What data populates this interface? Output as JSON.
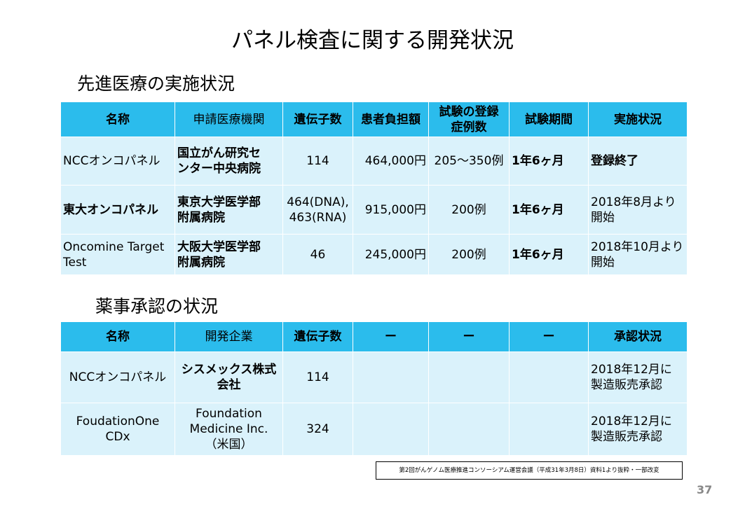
{
  "title": "パネル検査に関する開発状況",
  "section1": {
    "heading": "先進医療の実施状況",
    "headers": [
      "名称",
      "申請医療機関",
      "遺伝子数",
      "患者負担額",
      "試験の登録\n症例数",
      "試験期間",
      "実施状況"
    ],
    "rows": [
      [
        "NCCオンコパネル",
        "国立がん研究セ\nンター中央病院",
        "114",
        "464,000円",
        "205～350例",
        "1年6ヶ月",
        "登録終了"
      ],
      [
        "東大オンコパネル",
        "東京大学医学部\n附属病院",
        "464(DNA),\n463(RNA)",
        "915,000円",
        "200例",
        "1年6ヶ月",
        "2018年8月より\n開始"
      ],
      [
        "Oncomine Target\nTest",
        "大阪大学医学部\n附属病院",
        "46",
        "245,000円",
        "200例",
        "1年6ヶ月",
        "2018年10月より\n開始"
      ]
    ]
  },
  "section2": {
    "heading": "薬事承認の状況",
    "headers": [
      "名称",
      "開発企業",
      "遺伝子数",
      "ー",
      "ー",
      "ー",
      "承認状況"
    ],
    "rows": [
      [
        "NCCオンコパネル",
        "シスメックス株式\n会社",
        "114",
        "",
        "",
        "",
        "2018年12月に\n製造販売承認"
      ],
      [
        "FoudationOne CDx",
        "Foundation\nMedicine Inc.\n（米国）",
        "324",
        "",
        "",
        "",
        "2018年12月に\n製造販売承認"
      ]
    ]
  },
  "footnote": "第2回がんゲノム医療推進コンソーシアム運営会議（平成31年3月8日）資料1より抜粋・一部改変",
  "page_number": "37"
}
